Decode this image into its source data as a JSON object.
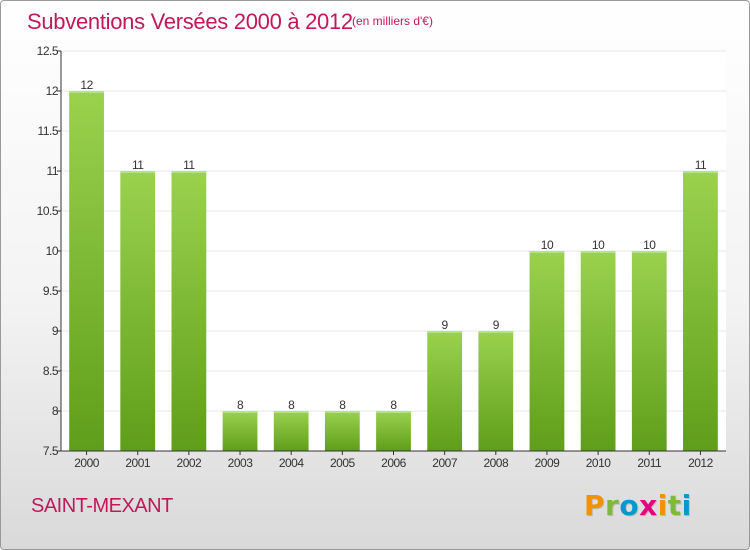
{
  "header": {
    "title": "Subventions Versées 2000 à 2012",
    "subtitle": "(en milliers d'€)"
  },
  "footer": {
    "commune": "SAINT-MEXANT",
    "logo_text": "Proxiti",
    "logo_colors": [
      "#f39200",
      "#7fb93b",
      "#0099cc",
      "#e4007f",
      "#f39200",
      "#7fb93b",
      "#0099cc"
    ]
  },
  "colors": {
    "bar": "#7cc134",
    "title": "#c2185b",
    "grid": "#e8e8e8",
    "axis": "#333333"
  },
  "chart_data": {
    "type": "bar",
    "categories": [
      "2000",
      "2001",
      "2002",
      "2003",
      "2004",
      "2005",
      "2006",
      "2007",
      "2008",
      "2009",
      "2010",
      "2011",
      "2012"
    ],
    "values": [
      12,
      11,
      11,
      8,
      8,
      8,
      8,
      9,
      9,
      10,
      10,
      10,
      11
    ],
    "value_labels": [
      "12",
      "11",
      "11",
      "8",
      "8",
      "8",
      "8",
      "9",
      "9",
      "10",
      "10",
      "10",
      "11"
    ],
    "y_ticks": [
      7.5,
      8,
      8.5,
      9,
      9.5,
      10,
      10.5,
      11,
      11.5,
      12,
      12.5
    ],
    "y_tick_labels": [
      "7.5",
      "8",
      "8.5",
      "9",
      "9.5",
      "10",
      "10.5",
      "11",
      "11.5",
      "12",
      "12.5"
    ],
    "ylim": [
      7.5,
      12.5
    ],
    "grid": true,
    "legend": "none"
  }
}
